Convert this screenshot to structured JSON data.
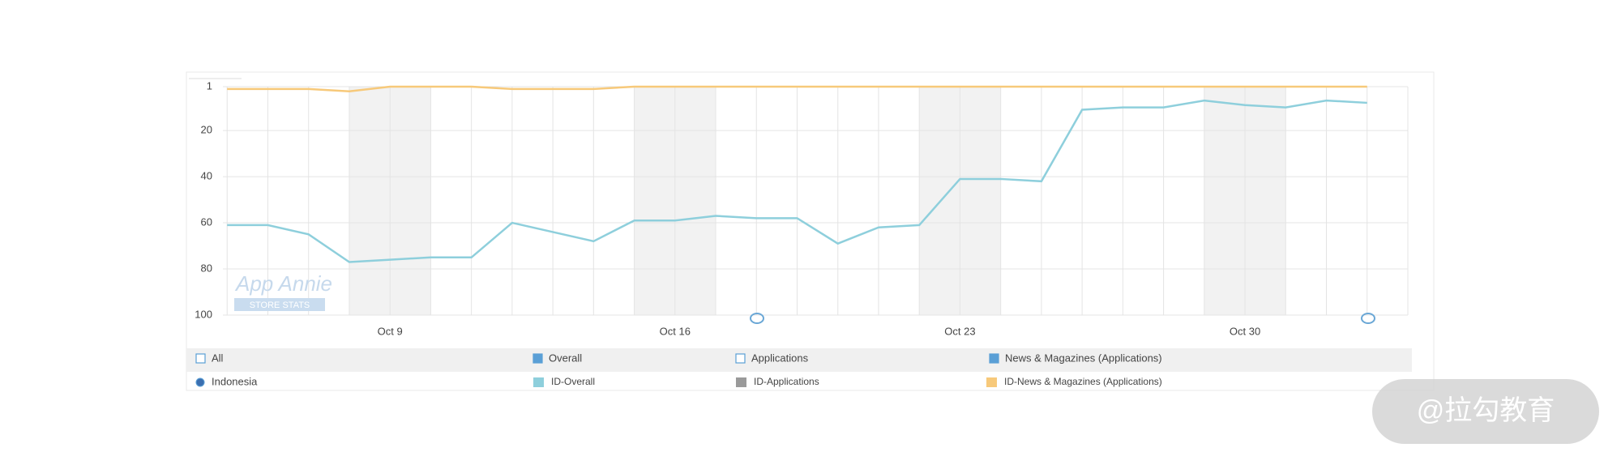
{
  "chart_data": {
    "type": "line",
    "categories": [
      null,
      null,
      null,
      null,
      "Oct 9",
      null,
      null,
      null,
      null,
      null,
      null,
      "Oct 16",
      null,
      null,
      null,
      null,
      null,
      null,
      "Oct 23",
      null,
      null,
      null,
      null,
      null,
      null,
      "Oct 30",
      null,
      null,
      null
    ],
    "series": [
      {
        "name": "ID-Overall",
        "color": "#8ecfdc",
        "values": [
          61,
          61,
          65,
          77,
          76,
          75,
          75,
          60,
          64,
          68,
          59,
          59,
          57,
          58,
          58,
          69,
          62,
          61,
          41,
          41,
          42,
          11,
          10,
          10,
          7,
          9,
          10,
          7,
          8
        ]
      },
      {
        "name": "ID-Applications",
        "color": "#9a9a9a",
        "values": [
          null,
          null,
          null,
          null,
          null,
          null,
          null,
          null,
          null,
          null,
          null,
          null,
          null,
          null,
          null,
          null,
          null,
          null,
          null,
          null,
          null,
          null,
          null,
          null,
          null,
          null,
          null,
          null,
          null
        ]
      },
      {
        "name": "ID-News & Magazines (Applications)",
        "color": "#f7c97a",
        "values": [
          2,
          2,
          2,
          3,
          1,
          1,
          1,
          2,
          2,
          2,
          1,
          1,
          1,
          1,
          1,
          1,
          1,
          1,
          1,
          1,
          1,
          1,
          1,
          1,
          1,
          1,
          1,
          1,
          1
        ]
      }
    ],
    "ylim": [
      1,
      100
    ],
    "yticks": [
      1,
      20,
      40,
      60,
      80,
      100
    ],
    "y_inverted": true,
    "grid": true,
    "filters": [
      {
        "label": "All",
        "checked": false
      },
      {
        "label": "Overall",
        "checked": true
      },
      {
        "label": "Applications",
        "checked": false
      },
      {
        "label": "News & Magazines (Applications)",
        "checked": true
      }
    ],
    "country": "Indonesia",
    "watermark": [
      "App Annie",
      "STORE STATS"
    ],
    "badge": "@拉勾教育"
  }
}
